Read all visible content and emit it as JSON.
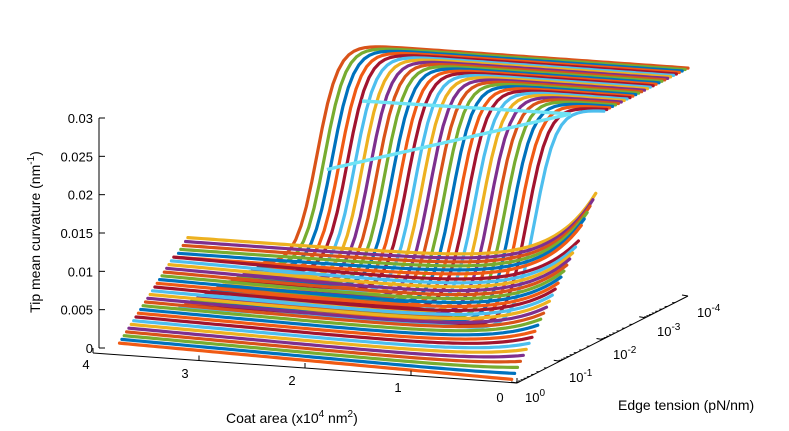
{
  "chart_data": {
    "type": "line",
    "projection": "3d",
    "z_axis": {
      "label": "Tip mean curvature (nm",
      "label_sup": "-1",
      "label_end": ")",
      "range": [
        0,
        0.03
      ],
      "ticks": [
        "0",
        "0.005",
        "0.01",
        "0.015",
        "0.02",
        "0.025",
        "0.03"
      ]
    },
    "x_axis": {
      "label": "Coat area (x10",
      "label_sup": "4",
      "label_mid": " nm",
      "label_sup2": "2",
      "label_end": ")",
      "range": [
        0,
        4
      ],
      "ticks": [
        "4",
        "3",
        "2",
        "1",
        "0"
      ]
    },
    "y_axis": {
      "label": "Edge tension (pN/nm)",
      "scale": "log",
      "range": [
        0.0001,
        1
      ],
      "ticks": [
        {
          "base": "10",
          "exp": "0"
        },
        {
          "base": "10",
          "exp": "-1"
        },
        {
          "base": "10",
          "exp": "-2"
        },
        {
          "base": "10",
          "exp": "-3"
        },
        {
          "base": "10",
          "exp": "-4"
        }
      ]
    },
    "grid": false,
    "series_colors": [
      "#f05a14",
      "#0072bd",
      "#77ac30",
      "#d95319",
      "#7e2f8e",
      "#edb120",
      "#4dbeee",
      "#a2142f"
    ],
    "num_series": 60,
    "notes_visible": "none"
  }
}
